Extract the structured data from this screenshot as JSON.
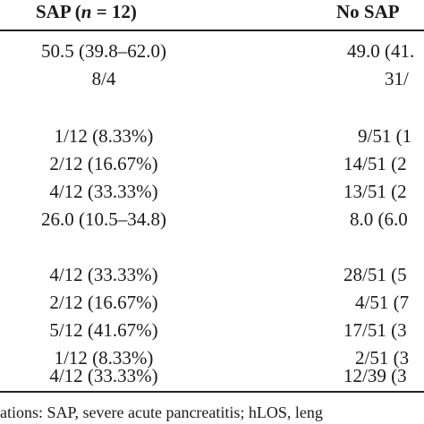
{
  "header": {
    "sap_prefix": "SAP (",
    "sap_n": "n",
    "sap_suffix": " = 12)",
    "no_sap": "No SAP"
  },
  "rows": [
    {
      "sap": "50.5 (39.8–62.0)",
      "no_sap": "49.0 (41."
    },
    {
      "sap": "8/4",
      "no_sap": "31/"
    },
    {
      "sap": "",
      "no_sap": ""
    },
    {
      "sap": "1/12 (8.33%)",
      "no_sap": "9/51 (1"
    },
    {
      "sap": "2/12 (16.67%)",
      "no_sap": "14/51 (2"
    },
    {
      "sap": "4/12 (33.33%)",
      "no_sap": "13/51 (2"
    },
    {
      "sap": "26.0 (10.5–34.8)",
      "no_sap": "8.0 (6.0"
    },
    {
      "sap": "",
      "no_sap": ""
    },
    {
      "sap": "4/12 (33.33%)",
      "no_sap": "28/51 (5"
    },
    {
      "sap": "2/12 (16.67%)",
      "no_sap": "4/51 (7"
    },
    {
      "sap": "5/12 (41.67%)",
      "no_sap": "17/51 (3"
    },
    {
      "sap": "1/12 (8.33%)",
      "no_sap": "2/51 (3"
    },
    {
      "sap": "4/12 (33.33%)",
      "no_sap": "12/39 (3"
    }
  ],
  "footnote": "ations: SAP, severe acute pancreatitis; hLOS, leng"
}
